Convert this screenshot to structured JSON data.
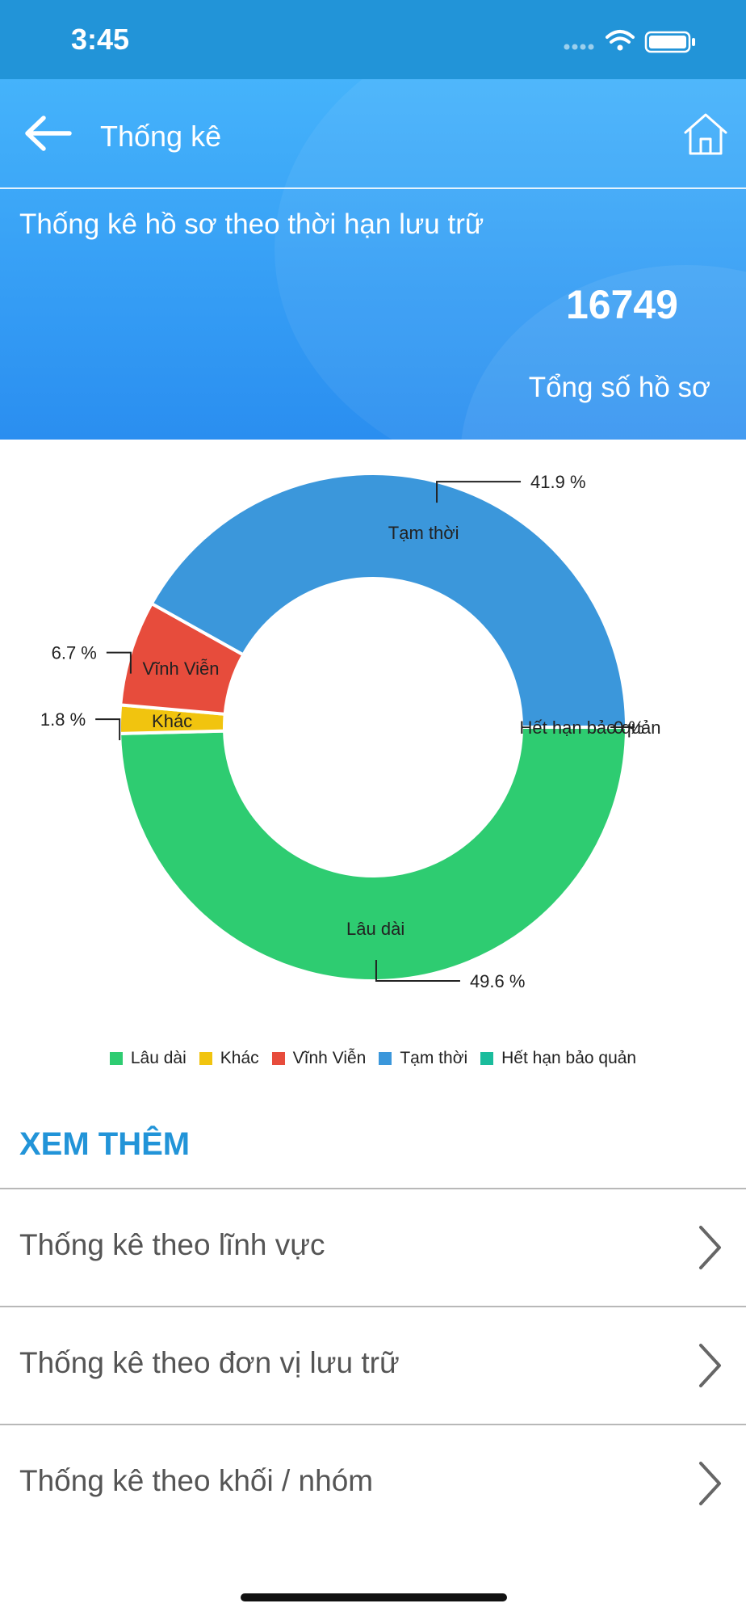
{
  "status_bar": {
    "time": "3:45"
  },
  "header": {
    "nav_title": "Thống kê",
    "heading": "Thống kê hồ sơ theo thời hạn lưu trữ",
    "total_value": "16749",
    "total_label": "Tổng số hồ sơ"
  },
  "colors": {
    "header_blue": "#2294d8",
    "accent": "#2294d8",
    "lau_dai": "#2ecc71",
    "khac": "#f1c40f",
    "vinh_vien": "#e74c3c",
    "tam_thoi": "#3b97db",
    "het_han": "#1abc9c"
  },
  "icons": {
    "back": "arrow-left-icon",
    "home": "home-icon",
    "chevron": "chevron-right-icon",
    "signal": "signal-icon",
    "wifi": "wifi-icon",
    "battery": "battery-icon"
  },
  "chart_data": {
    "type": "pie",
    "donut": true,
    "categories": [
      "Lâu dài",
      "Khác",
      "Vĩnh Viễn",
      "Tạm thời",
      "Hết hạn bảo quản"
    ],
    "values": [
      49.6,
      1.8,
      6.7,
      41.9,
      0
    ],
    "value_labels": [
      "49.6 %",
      "1.8 %",
      "6.7 %",
      "41.9 %",
      "0 %"
    ],
    "colors": [
      "#2ecc71",
      "#f1c40f",
      "#e74c3c",
      "#3b97db",
      "#1abc9c"
    ],
    "legend": [
      "Lâu dài",
      "Khác",
      "Vĩnh Viễn",
      "Tạm thời",
      "Hết hạn bảo quản"
    ],
    "legend_position": "bottom"
  },
  "see_more": {
    "title": "XEM THÊM",
    "items": [
      {
        "label": "Thống kê theo lĩnh vực"
      },
      {
        "label": "Thống kê theo đơn vị lưu trữ"
      },
      {
        "label": "Thống kê theo khối / nhóm"
      }
    ]
  }
}
